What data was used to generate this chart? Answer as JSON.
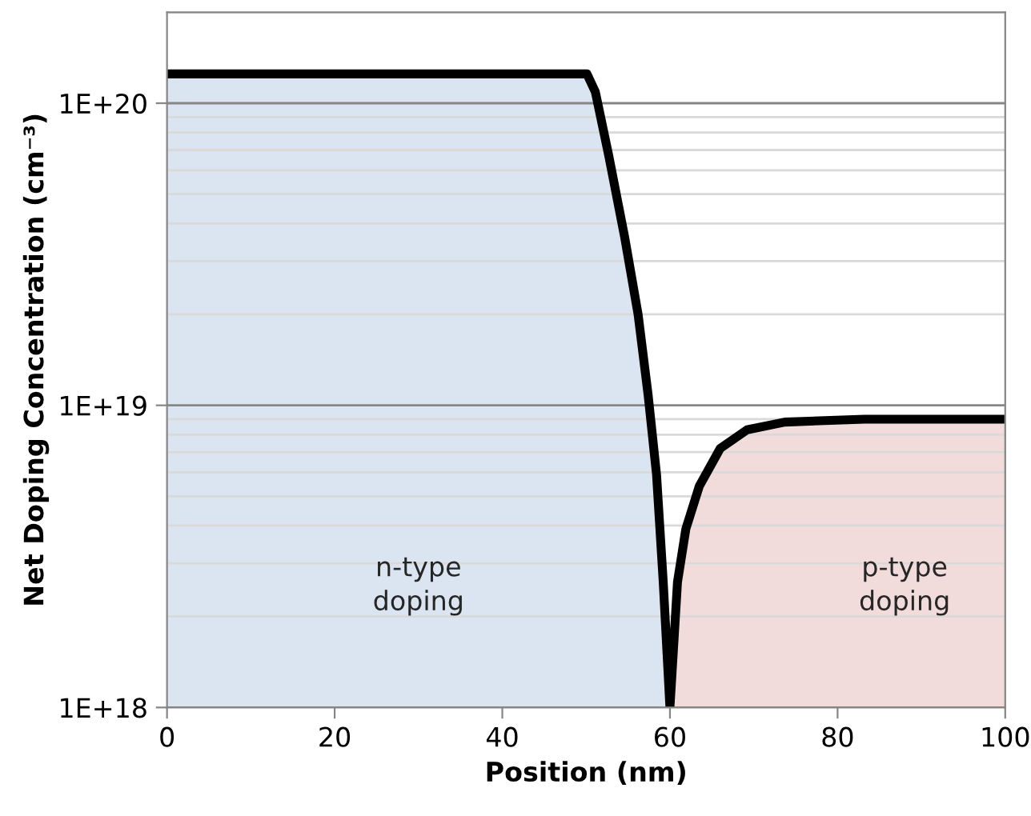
{
  "chart_data": {
    "type": "line",
    "xlabel": "Position (nm)",
    "ylabel": "Net Doping Concentration (cm⁻³)",
    "series": [
      {
        "type": "area",
        "color": "#dbe5f1",
        "x": [
          0,
          50.1,
          51.1,
          52.7,
          54.6,
          56.2,
          57.4,
          58.4,
          59.2,
          60
        ],
        "values": [
          1.25e+20,
          1.25e+20,
          1.09e+20,
          6.7e+19,
          3.6e+19,
          2e+19,
          1.08e+19,
          5.9e+18,
          2.6e+18,
          1e+18
        ]
      },
      {
        "type": "area",
        "color": "#f2dcdb",
        "x": [
          60,
          60.9,
          61.9,
          63.5,
          66.0,
          69.2,
          73.7,
          83.2,
          100
        ],
        "values": [
          1e+18,
          2.6e+18,
          3.9e+18,
          5.4e+18,
          7.2e+18,
          8.3e+18,
          8.8e+18,
          9e+18,
          9e+18
        ]
      },
      {
        "color": "#000000",
        "x": [
          0,
          50.1,
          51.1,
          52.7,
          54.6,
          56.2,
          57.4,
          58.4,
          59.2,
          60,
          60.9,
          61.9,
          63.5,
          66.0,
          69.2,
          73.7,
          83.2,
          100
        ],
        "values": [
          1.25e+20,
          1.25e+20,
          1.09e+20,
          6.7e+19,
          3.6e+19,
          2e+19,
          1.08e+19,
          5.9e+18,
          2.6e+18,
          1e+18,
          2.6e+18,
          3.9e+18,
          5.4e+18,
          7.2e+18,
          8.3e+18,
          8.8e+18,
          9e+18,
          9e+18
        ]
      }
    ],
    "log": "y",
    "xlim": [
      0,
      100
    ],
    "xticks": [
      0,
      20,
      40,
      60,
      80,
      100
    ],
    "ylim": [
      1e+18,
      2e+20
    ],
    "yticks": [
      {
        "value": 1e+18,
        "label": "1E+18"
      },
      {
        "value": 1e+19,
        "label": "1E+19"
      },
      {
        "value": 1e+20,
        "label": "1E+20"
      }
    ],
    "grid": "y",
    "annotations": [
      "n-type\ndoping",
      "p-type\ndoping"
    ]
  }
}
